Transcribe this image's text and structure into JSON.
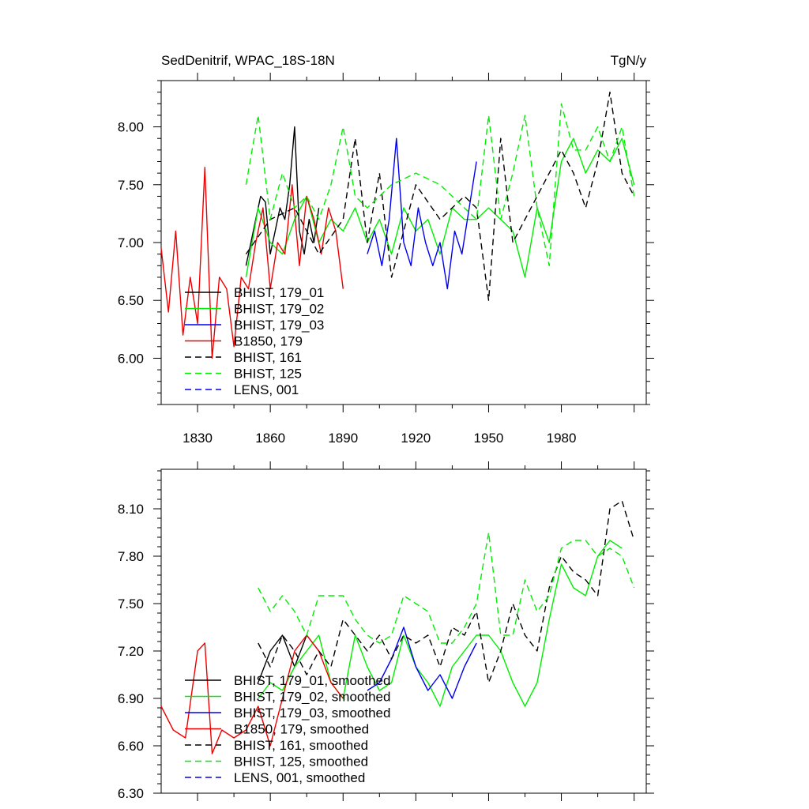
{
  "chart_data": [
    {
      "type": "line",
      "title": "SedDenitrif, WPAC_18S-18N",
      "units": "TgN/y",
      "xlim": [
        1815,
        2015
      ],
      "ylim": [
        5.6,
        8.4
      ],
      "x_ticks": [
        1830,
        1860,
        1890,
        1920,
        1950,
        1980
      ],
      "y_ticks": [
        6.0,
        6.5,
        7.0,
        7.5,
        8.0
      ],
      "y_tick_labels": [
        "6.00",
        "6.50",
        "7.00",
        "7.50",
        "8.00"
      ],
      "x_tick_labels": [
        "1830",
        "1860",
        "1890",
        "1920",
        "1950",
        "1980"
      ],
      "legend": [
        "BHIST, 179_01",
        "BHIST, 179_02",
        "BHIST, 179_03",
        "B1850, 179",
        "BHIST, 161",
        "BHIST, 125",
        "LENS, 001"
      ],
      "series": [
        {
          "name": "BHIST, 179_01",
          "color": "#000000",
          "dash": "solid",
          "x": [
            1850,
            1852,
            1854,
            1856,
            1858,
            1860,
            1862,
            1864,
            1866,
            1868,
            1870,
            1872,
            1874,
            1876,
            1878,
            1880
          ],
          "y": [
            6.8,
            7.0,
            7.2,
            7.4,
            7.35,
            6.9,
            7.1,
            7.3,
            7.2,
            7.5,
            8.0,
            7.1,
            6.9,
            7.2,
            7.0,
            7.3
          ]
        },
        {
          "name": "BHIST, 179_02",
          "color": "#00ee00",
          "dash": "solid",
          "x": [
            1850,
            1855,
            1860,
            1865,
            1870,
            1875,
            1880,
            1885,
            1890,
            1895,
            1900,
            1905,
            1910,
            1915,
            1920,
            1925,
            1930,
            1935,
            1940,
            1945,
            1950,
            1955,
            1960,
            1965,
            1970,
            1975,
            1980,
            1985,
            1990,
            1995,
            2000,
            2005,
            2010
          ],
          "y": [
            6.7,
            7.3,
            7.0,
            6.9,
            7.2,
            7.4,
            7.0,
            7.2,
            7.1,
            7.3,
            7.0,
            7.2,
            6.9,
            7.3,
            7.1,
            7.2,
            6.9,
            7.3,
            7.2,
            7.2,
            7.3,
            7.2,
            7.1,
            6.7,
            7.3,
            7.0,
            7.7,
            7.9,
            7.6,
            7.8,
            7.7,
            7.9,
            7.5
          ]
        },
        {
          "name": "BHIST, 179_03",
          "color": "#0000ee",
          "dash": "solid",
          "x": [
            1900,
            1903,
            1906,
            1909,
            1912,
            1915,
            1918,
            1921,
            1924,
            1927,
            1930,
            1933,
            1936,
            1939,
            1942,
            1945
          ],
          "y": [
            6.9,
            7.1,
            6.8,
            7.2,
            7.9,
            7.0,
            6.8,
            7.3,
            7.0,
            6.8,
            7.0,
            6.6,
            7.1,
            6.9,
            7.3,
            7.7
          ]
        },
        {
          "name": "B1850, 179",
          "color": "#ee0000",
          "dash": "solid",
          "x": [
            1815,
            1818,
            1821,
            1824,
            1827,
            1830,
            1833,
            1836,
            1839,
            1842,
            1845,
            1848,
            1851,
            1854,
            1857,
            1860,
            1863,
            1866,
            1869,
            1872,
            1875,
            1878,
            1881,
            1884,
            1887,
            1890
          ],
          "y": [
            6.95,
            6.4,
            7.1,
            6.2,
            6.7,
            6.3,
            7.65,
            6.0,
            6.7,
            6.6,
            6.1,
            6.7,
            6.6,
            7.0,
            7.3,
            6.6,
            7.0,
            6.9,
            7.5,
            6.8,
            7.4,
            7.2,
            6.9,
            7.3,
            7.1,
            6.6
          ]
        },
        {
          "name": "BHIST, 161",
          "color": "#000000",
          "dash": "dashed",
          "x": [
            1850,
            1860,
            1870,
            1880,
            1890,
            1895,
            1900,
            1905,
            1910,
            1920,
            1930,
            1940,
            1945,
            1950,
            1955,
            1960,
            1970,
            1980,
            1985,
            1990,
            1995,
            2000,
            2005,
            2010
          ],
          "y": [
            6.9,
            7.2,
            7.3,
            6.9,
            7.2,
            7.9,
            7.0,
            7.6,
            6.7,
            7.5,
            7.2,
            7.4,
            7.3,
            6.5,
            7.9,
            7.0,
            7.4,
            7.8,
            7.6,
            7.3,
            7.7,
            8.3,
            7.6,
            7.4
          ]
        },
        {
          "name": "BHIST, 125",
          "color": "#00ee00",
          "dash": "dashed",
          "x": [
            1850,
            1855,
            1860,
            1865,
            1870,
            1875,
            1880,
            1885,
            1890,
            1895,
            1900,
            1910,
            1920,
            1930,
            1940,
            1945,
            1950,
            1955,
            1960,
            1965,
            1970,
            1975,
            1980,
            1985,
            1990,
            1995,
            2000,
            2005,
            2010
          ],
          "y": [
            7.5,
            8.1,
            7.2,
            7.6,
            7.3,
            7.4,
            7.2,
            7.5,
            8.0,
            7.4,
            7.3,
            7.5,
            7.6,
            7.5,
            7.3,
            7.2,
            8.1,
            7.2,
            7.6,
            8.1,
            7.3,
            6.8,
            8.2,
            7.8,
            7.8,
            8.0,
            7.7,
            8.0,
            7.4
          ]
        },
        {
          "name": "LENS, 001",
          "color": "#0000ee",
          "dash": "dashed",
          "x": [],
          "y": []
        }
      ]
    },
    {
      "type": "line",
      "title": "",
      "units": "",
      "xlim": [
        1815,
        2015
      ],
      "ylim": [
        6.3,
        8.35
      ],
      "y_ticks": [
        6.3,
        6.6,
        6.9,
        7.2,
        7.5,
        7.8,
        8.1
      ],
      "y_tick_labels": [
        "6.30",
        "6.60",
        "6.90",
        "7.20",
        "7.50",
        "7.80",
        "8.10"
      ],
      "legend": [
        "BHIST, 179_01, smoothed",
        "BHIST, 179_02, smoothed",
        "BHIST, 179_03, smoothed",
        "B1850, 179, smoothed",
        "BHIST, 161, smoothed",
        "BHIST, 125, smoothed",
        "LENS, 001, smoothed"
      ],
      "series": [
        {
          "name": "BHIST, 179_01, smoothed",
          "color": "#000000",
          "dash": "solid",
          "x": [
            1855,
            1860,
            1865,
            1870,
            1875,
            1880
          ],
          "y": [
            7.0,
            7.2,
            7.3,
            7.1,
            7.3,
            7.2
          ]
        },
        {
          "name": "BHIST, 179_02, smoothed",
          "color": "#00ee00",
          "dash": "solid",
          "x": [
            1855,
            1860,
            1865,
            1870,
            1875,
            1880,
            1885,
            1890,
            1895,
            1900,
            1905,
            1910,
            1915,
            1920,
            1925,
            1930,
            1935,
            1940,
            1945,
            1950,
            1955,
            1960,
            1965,
            1970,
            1975,
            1980,
            1985,
            1990,
            1995,
            2000,
            2005
          ],
          "y": [
            6.9,
            7.0,
            6.95,
            7.1,
            7.2,
            7.3,
            7.0,
            6.9,
            7.3,
            7.1,
            6.95,
            7.0,
            7.3,
            7.1,
            7.0,
            6.85,
            7.1,
            7.2,
            7.3,
            7.3,
            7.2,
            7.0,
            6.85,
            7.0,
            7.4,
            7.75,
            7.6,
            7.55,
            7.8,
            7.9,
            7.85
          ]
        },
        {
          "name": "BHIST, 179_03, smoothed",
          "color": "#0000ee",
          "dash": "solid",
          "x": [
            1900,
            1905,
            1910,
            1915,
            1920,
            1925,
            1930,
            1935,
            1940,
            1945
          ],
          "y": [
            6.95,
            7.0,
            7.15,
            7.35,
            7.1,
            6.95,
            7.05,
            6.9,
            7.1,
            7.25
          ]
        },
        {
          "name": "B1850, 179, smoothed",
          "color": "#ee0000",
          "dash": "solid",
          "x": [
            1815,
            1820,
            1825,
            1830,
            1833,
            1836,
            1840,
            1845,
            1850,
            1855,
            1860,
            1865,
            1870,
            1875,
            1880,
            1885,
            1890
          ],
          "y": [
            6.85,
            6.7,
            6.65,
            7.2,
            7.25,
            6.55,
            6.7,
            6.65,
            6.7,
            6.85,
            6.6,
            6.9,
            7.2,
            7.3,
            7.2,
            7.0,
            6.9
          ]
        },
        {
          "name": "BHIST, 161, smoothed",
          "color": "#000000",
          "dash": "dashed",
          "x": [
            1855,
            1860,
            1865,
            1870,
            1875,
            1880,
            1885,
            1890,
            1895,
            1900,
            1905,
            1910,
            1915,
            1920,
            1925,
            1930,
            1935,
            1940,
            1945,
            1950,
            1955,
            1960,
            1965,
            1970,
            1975,
            1980,
            1985,
            1990,
            1995,
            2000,
            2005,
            2010
          ],
          "y": [
            7.25,
            7.1,
            7.3,
            7.2,
            7.05,
            7.2,
            7.1,
            7.4,
            7.3,
            7.2,
            7.3,
            7.15,
            7.3,
            7.25,
            7.3,
            7.1,
            7.35,
            7.3,
            7.45,
            7.0,
            7.2,
            7.5,
            7.3,
            7.2,
            7.6,
            7.8,
            7.7,
            7.65,
            7.55,
            8.1,
            8.15,
            7.9
          ]
        },
        {
          "name": "BHIST, 125, smoothed",
          "color": "#00ee00",
          "dash": "dashed",
          "x": [
            1855,
            1860,
            1865,
            1870,
            1875,
            1880,
            1885,
            1890,
            1895,
            1900,
            1905,
            1910,
            1915,
            1920,
            1925,
            1930,
            1935,
            1940,
            1945,
            1950,
            1955,
            1960,
            1965,
            1970,
            1975,
            1980,
            1985,
            1990,
            1995,
            2000,
            2005,
            2010
          ],
          "y": [
            7.6,
            7.45,
            7.55,
            7.45,
            7.3,
            7.55,
            7.55,
            7.55,
            7.4,
            7.3,
            7.25,
            7.3,
            7.55,
            7.5,
            7.45,
            7.25,
            7.25,
            7.35,
            7.5,
            7.95,
            7.3,
            7.3,
            7.65,
            7.45,
            7.55,
            7.85,
            7.9,
            7.9,
            7.8,
            7.85,
            7.8,
            7.6
          ]
        },
        {
          "name": "LENS, 001, smoothed",
          "color": "#0000ee",
          "dash": "dashed",
          "x": [],
          "y": []
        }
      ]
    }
  ]
}
